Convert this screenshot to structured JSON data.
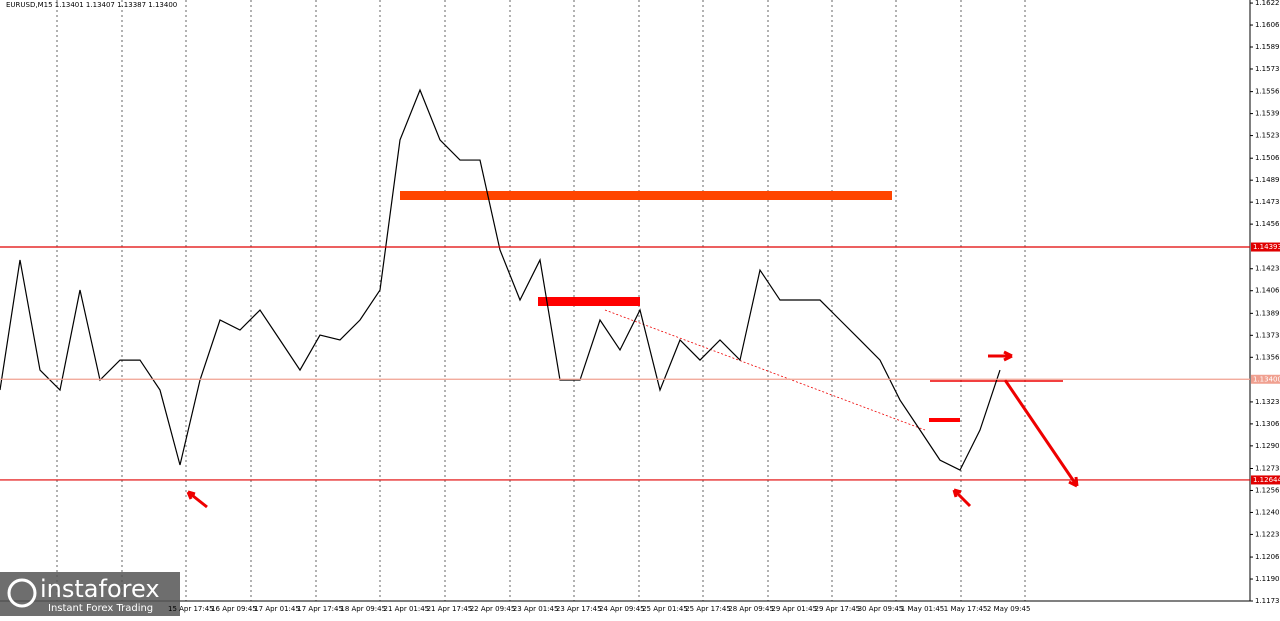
{
  "chart_data": {
    "type": "line",
    "title": "EURUSD,M15  1.13401 1.13407 1.13387 1.13400",
    "x_labels": [
      "15 Apr 17:45",
      "16 Apr 09:45",
      "17 Apr 01:45",
      "17 Apr 17:45",
      "18 Apr 09:45",
      "21 Apr 01:45",
      "21 Apr 17:45",
      "22 Apr 09:45",
      "23 Apr 01:45",
      "23 Apr 17:45",
      "24 Apr 09:45",
      "25 Apr 01:45",
      "25 Apr 17:45",
      "28 Apr 09:45",
      "29 Apr 01:45",
      "29 Apr 17:45",
      "30 Apr 09:45",
      "1 May 01:45",
      "1 May 17:45",
      "2 May 09:45"
    ],
    "series": [
      {
        "color": "#000000",
        "values": [
          1.13319,
          1.14296,
          1.13469,
          1.13319,
          1.1407,
          1.13394,
          1.13544,
          1.13544,
          1.13319,
          1.12756,
          1.13394,
          1.13845,
          1.1377,
          1.1392,
          1.13695,
          1.13469,
          1.13732,
          1.13695,
          1.13845,
          1.1407,
          1.15197,
          1.15572,
          1.15197,
          1.15046,
          1.15046,
          1.14371,
          1.13995,
          1.14296,
          1.13394,
          1.13394,
          1.13845,
          1.1362,
          1.1392,
          1.13319,
          1.13695,
          1.13544,
          1.13695,
          1.13544,
          1.1422,
          1.13995,
          1.13995,
          1.13995,
          1.13845,
          1.13695,
          1.13544,
          1.13244,
          1.13019,
          1.12793,
          1.12718,
          1.13019,
          1.13469
        ]
      }
    ],
    "ylim": [
      1.11735,
      1.16248
    ],
    "yticks": [
      1.16225,
      {
        "value": 1.1606,
        "label": "1.16060"
      },
      1.15895,
      {
        "value": 1.1573,
        "label": "1.15730"
      },
      {
        "value": 1.1556,
        "label": "1.15560"
      },
      1.15395,
      {
        "value": 1.1523,
        "label": "1.15230"
      },
      {
        "value": 1.1506,
        "label": "1.15060"
      },
      1.14895,
      {
        "value": 1.1473,
        "label": "1.14730"
      },
      1.14565,
      {
        "value": 1.1423,
        "label": "1.14230"
      },
      1.14065,
      1.13895,
      {
        "value": 1.1373,
        "label": "1.13730"
      },
      1.13565,
      {
        "value": 1.1323,
        "label": "1.13230"
      },
      1.13065,
      {
        "value": 1.129,
        "label": "1.12900"
      },
      {
        "value": 1.1273,
        "label": "1.12730"
      },
      1.12565,
      {
        "value": 1.124,
        "label": "1.12400"
      },
      1.12235,
      1.12065,
      {
        "value": 1.119,
        "label": "1.11900"
      },
      1.11735
    ],
    "levels": [
      {
        "value": 1.14393,
        "color": "#e00000"
      },
      {
        "value": {
          "value": 1.134,
          "label": "1.13400"
        },
        "color": "#f0a090"
      },
      {
        "value": 1.12644,
        "color": "#e00000"
      }
    ],
    "logo": {
      "name": "instaforex",
      "tagline": "Instant Forex Trading"
    }
  }
}
